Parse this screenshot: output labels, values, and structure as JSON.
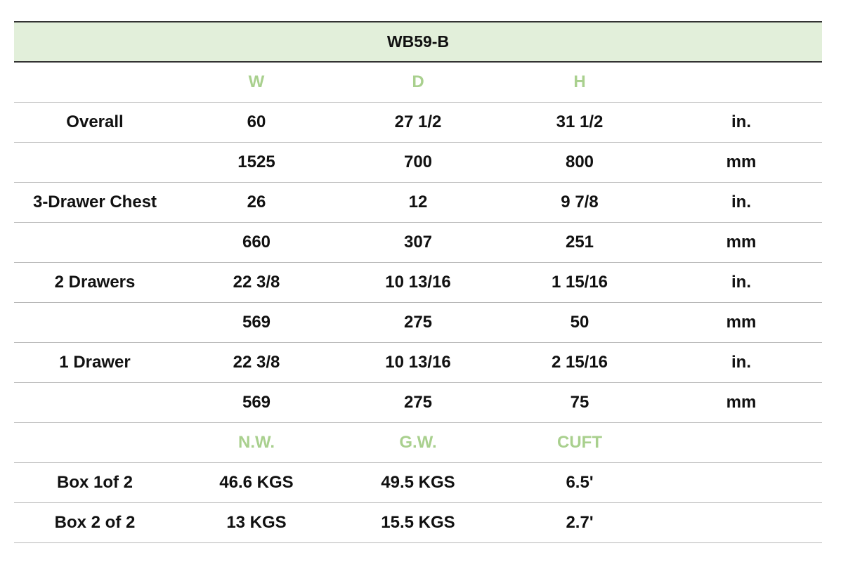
{
  "title": "WB59-B",
  "colors": {
    "band": "#e2efda",
    "header_text": "#a9d08e"
  },
  "rows": [
    {
      "type": "head",
      "cells": [
        "",
        "W",
        "D",
        "H",
        ""
      ]
    },
    {
      "type": "data",
      "cells": [
        "Overall",
        "60",
        "27 1/2",
        "31 1/2",
        "in."
      ]
    },
    {
      "type": "data",
      "cells": [
        "",
        "1525",
        "700",
        "800",
        "mm"
      ]
    },
    {
      "type": "data",
      "cells": [
        "3-Drawer Chest",
        "26",
        "12",
        "9 7/8",
        "in."
      ]
    },
    {
      "type": "data",
      "cells": [
        "",
        "660",
        "307",
        "251",
        "mm"
      ]
    },
    {
      "type": "data",
      "cells": [
        "2 Drawers",
        "22 3/8",
        "10 13/16",
        "1 15/16",
        "in."
      ]
    },
    {
      "type": "data",
      "cells": [
        "",
        "569",
        "275",
        "50",
        "mm"
      ]
    },
    {
      "type": "data",
      "cells": [
        "1 Drawer",
        "22 3/8",
        "10 13/16",
        "2 15/16",
        "in."
      ]
    },
    {
      "type": "data",
      "cells": [
        "",
        "569",
        "275",
        "75",
        "mm"
      ]
    },
    {
      "type": "head",
      "cells": [
        "",
        "N.W.",
        "G.W.",
        "CUFT",
        ""
      ]
    },
    {
      "type": "data",
      "cells": [
        "Box 1of 2",
        "46.6 KGS",
        "49.5 KGS",
        "6.5'",
        ""
      ]
    },
    {
      "type": "data",
      "cells": [
        "Box 2 of 2",
        "13 KGS",
        "15.5 KGS",
        "2.7'",
        ""
      ]
    }
  ]
}
